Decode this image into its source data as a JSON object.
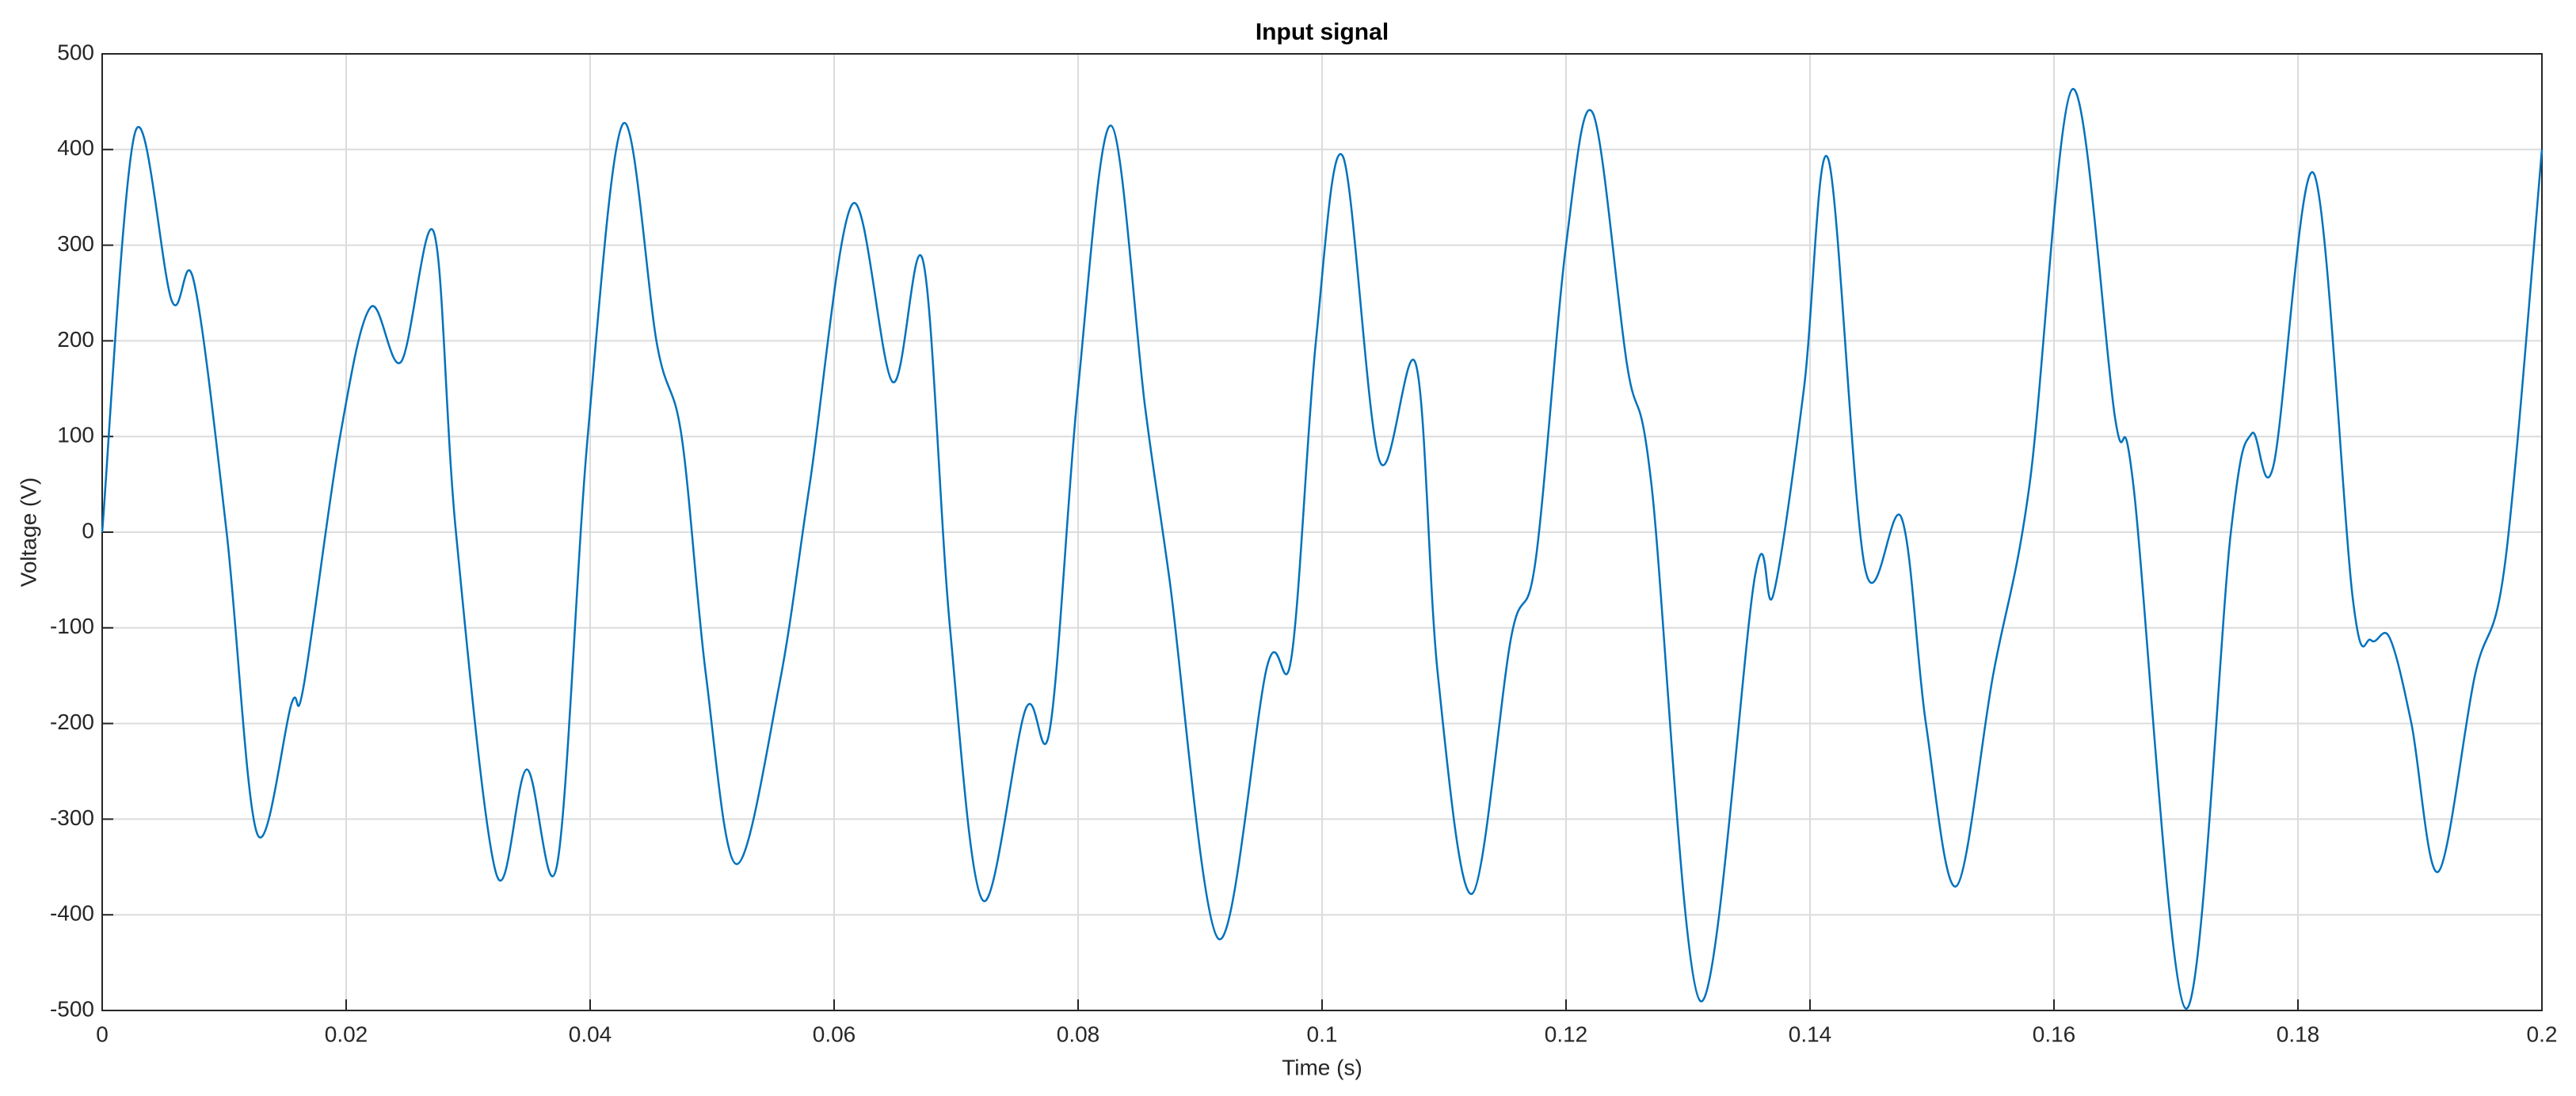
{
  "chart_data": {
    "type": "line",
    "title": "Input signal",
    "x_label": "Time (s)",
    "y_label": "Voltage (V)",
    "x": [
      0,
      0.0027,
      0.0057,
      0.0075,
      0.0102,
      0.0127,
      0.0155,
      0.0165,
      0.0195,
      0.022,
      0.0245,
      0.0272,
      0.029,
      0.0323,
      0.0348,
      0.0373,
      0.0398,
      0.0427,
      0.0455,
      0.0475,
      0.0495,
      0.052,
      0.0555,
      0.058,
      0.0615,
      0.0648,
      0.0673,
      0.0695,
      0.0722,
      0.0757,
      0.0777,
      0.08,
      0.0827,
      0.0855,
      0.0875,
      0.0915,
      0.0955,
      0.0975,
      0.0995,
      0.1017,
      0.1047,
      0.1077,
      0.1095,
      0.1123,
      0.1155,
      0.1175,
      0.12,
      0.1222,
      0.125,
      0.127,
      0.131,
      0.1355,
      0.137,
      0.1395,
      0.1415,
      0.1445,
      0.1475,
      0.1495,
      0.152,
      0.155,
      0.158,
      0.1615,
      0.165,
      0.1665,
      0.1708,
      0.1745,
      0.1762,
      0.178,
      0.1813,
      0.1845,
      0.186,
      0.1875,
      0.1893,
      0.1915,
      0.1945,
      0.197,
      0.2
    ],
    "series": [
      {
        "name": "Input signal",
        "color": "#0072bd",
        "values": [
          0,
          418,
          242,
          263,
          0,
          -315,
          -180,
          -162,
          100,
          235,
          178,
          313,
          0,
          -357,
          -248,
          -347,
          100,
          427,
          195,
          100,
          -150,
          -347,
          -160,
          50,
          343,
          157,
          283,
          -100,
          -385,
          -185,
          -205,
          150,
          425,
          130,
          -50,
          -425,
          -140,
          -130,
          200,
          393,
          75,
          175,
          -150,
          -378,
          -110,
          -30,
          300,
          438,
          175,
          50,
          -490,
          -45,
          -65,
          150,
          390,
          -37,
          15,
          -200,
          -370,
          -150,
          50,
          463,
          120,
          50,
          -498,
          0,
          103,
          70,
          375,
          -70,
          -113,
          -110,
          -200,
          -355,
          -150,
          -30,
          400
        ]
      }
    ],
    "xlim": [
      0,
      0.2
    ],
    "xticks": [
      0,
      0.02,
      0.04,
      0.06,
      0.08,
      0.1,
      0.12,
      0.14,
      0.16,
      0.18,
      0.2
    ],
    "ylim": [
      -500,
      500
    ],
    "yticks": [
      -500,
      -400,
      -300,
      -200,
      -100,
      0,
      100,
      200,
      300,
      400,
      500
    ],
    "grid": true
  }
}
